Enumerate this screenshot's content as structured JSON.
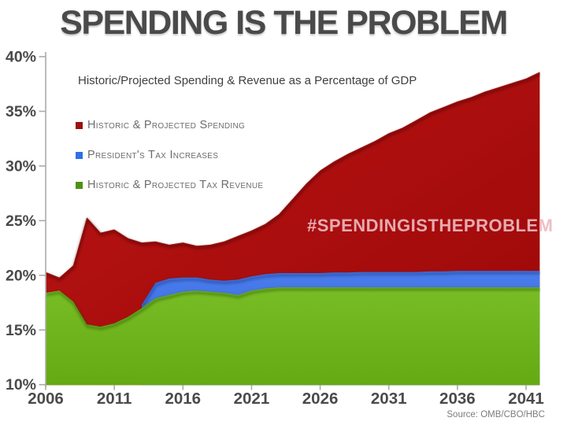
{
  "page": {
    "title": "SPENDING IS THE PROBLEM",
    "subtitle": "Historic/Projected Spending & Revenue as a Percentage of GDP",
    "hashtag": "#SPENDINGISTHEPROBLEM",
    "source": "Source: OMB/CBO/HBC"
  },
  "legend": {
    "items": [
      {
        "label": "Historic & Projected Spending",
        "swatch_color": "#9B1010"
      },
      {
        "label": "President's Tax Increases",
        "swatch_color": "#2E6FE8"
      },
      {
        "label": "Historic & Projected Tax Revenue",
        "swatch_color": "#4E9114"
      }
    ]
  },
  "colors": {
    "title_text": "#4A4A4A",
    "subtitle_text": "#3F3F3F",
    "legend_text": "#6C6C6C",
    "axis_text": "#4A4A4A",
    "axis_line": "#ABABAB",
    "hashtag_text": "#ECB9C1",
    "source_text": "#7D7D7D",
    "spending_area_gradient": [
      "#BA1414",
      "#9C0808"
    ],
    "tax_increase_area_gradient": [
      "#4A7CEC",
      "#3363D6"
    ],
    "revenue_area_gradient": [
      "#79BD26",
      "#65A913"
    ],
    "spending_edge_shadow": "#3A0000",
    "tax_increase_edge_shadow": "#0E2C6E",
    "revenue_edge_shadow": "#1F4A00"
  },
  "chart_data": {
    "type": "area",
    "title": "SPENDING IS THE PROBLEM",
    "subtitle": "Historic/Projected Spending & Revenue as a Percentage of GDP",
    "xlim": [
      2006,
      2042
    ],
    "ylim": [
      10,
      40
    ],
    "grid": false,
    "legend_position": "upper-left-inside",
    "x_tick_years": [
      2006,
      2011,
      2016,
      2021,
      2026,
      2031,
      2036,
      2041
    ],
    "x_tick_labels": [
      "2006",
      "2011",
      "2016",
      "2021",
      "2026",
      "2031",
      "2036",
      "2041"
    ],
    "y_tick_values": [
      10,
      15,
      20,
      25,
      30,
      35,
      40
    ],
    "y_tick_labels": [
      "10%",
      "15%",
      "20%",
      "25%",
      "30%",
      "35%",
      "40%"
    ],
    "series": [
      {
        "name": "Historic & Projected Spending",
        "role": "spending",
        "year_start": 2006,
        "values": [
          20.3,
          19.8,
          20.9,
          25.3,
          23.9,
          24.2,
          23.4,
          23.0,
          23.1,
          22.8,
          23.0,
          22.7,
          22.8,
          23.1,
          23.6,
          24.1,
          24.7,
          25.6,
          27.0,
          28.4,
          29.6,
          30.4,
          31.1,
          31.7,
          32.3,
          33.0,
          33.5,
          34.2,
          34.9,
          35.4,
          35.9,
          36.3,
          36.8,
          37.2,
          37.6,
          38.0,
          38.6
        ]
      },
      {
        "name": "President's Tax Increases",
        "role": "tax_increases_band_top",
        "year_start": 2013,
        "values": [
          17.3,
          19.3,
          19.7,
          19.8,
          19.8,
          19.6,
          19.5,
          19.6,
          19.9,
          20.1,
          20.2,
          20.2,
          20.2,
          20.2,
          20.25,
          20.25,
          20.3,
          20.3,
          20.3,
          20.3,
          20.3,
          20.35,
          20.35,
          20.4,
          20.4,
          20.4,
          20.4,
          20.4,
          20.4,
          20.4
        ]
      },
      {
        "name": "Historic & Projected Tax Revenue",
        "role": "revenue",
        "year_start": 2006,
        "values": [
          18.4,
          18.6,
          17.6,
          15.5,
          15.3,
          15.6,
          16.2,
          17.0,
          17.9,
          18.2,
          18.5,
          18.6,
          18.5,
          18.4,
          18.2,
          18.6,
          18.8,
          18.9,
          18.9,
          18.9,
          18.9,
          18.9,
          18.9,
          18.9,
          18.9,
          18.9,
          18.9,
          18.9,
          18.9,
          18.9,
          18.9,
          18.9,
          18.9,
          18.9,
          18.9,
          18.9,
          18.9
        ]
      }
    ]
  }
}
